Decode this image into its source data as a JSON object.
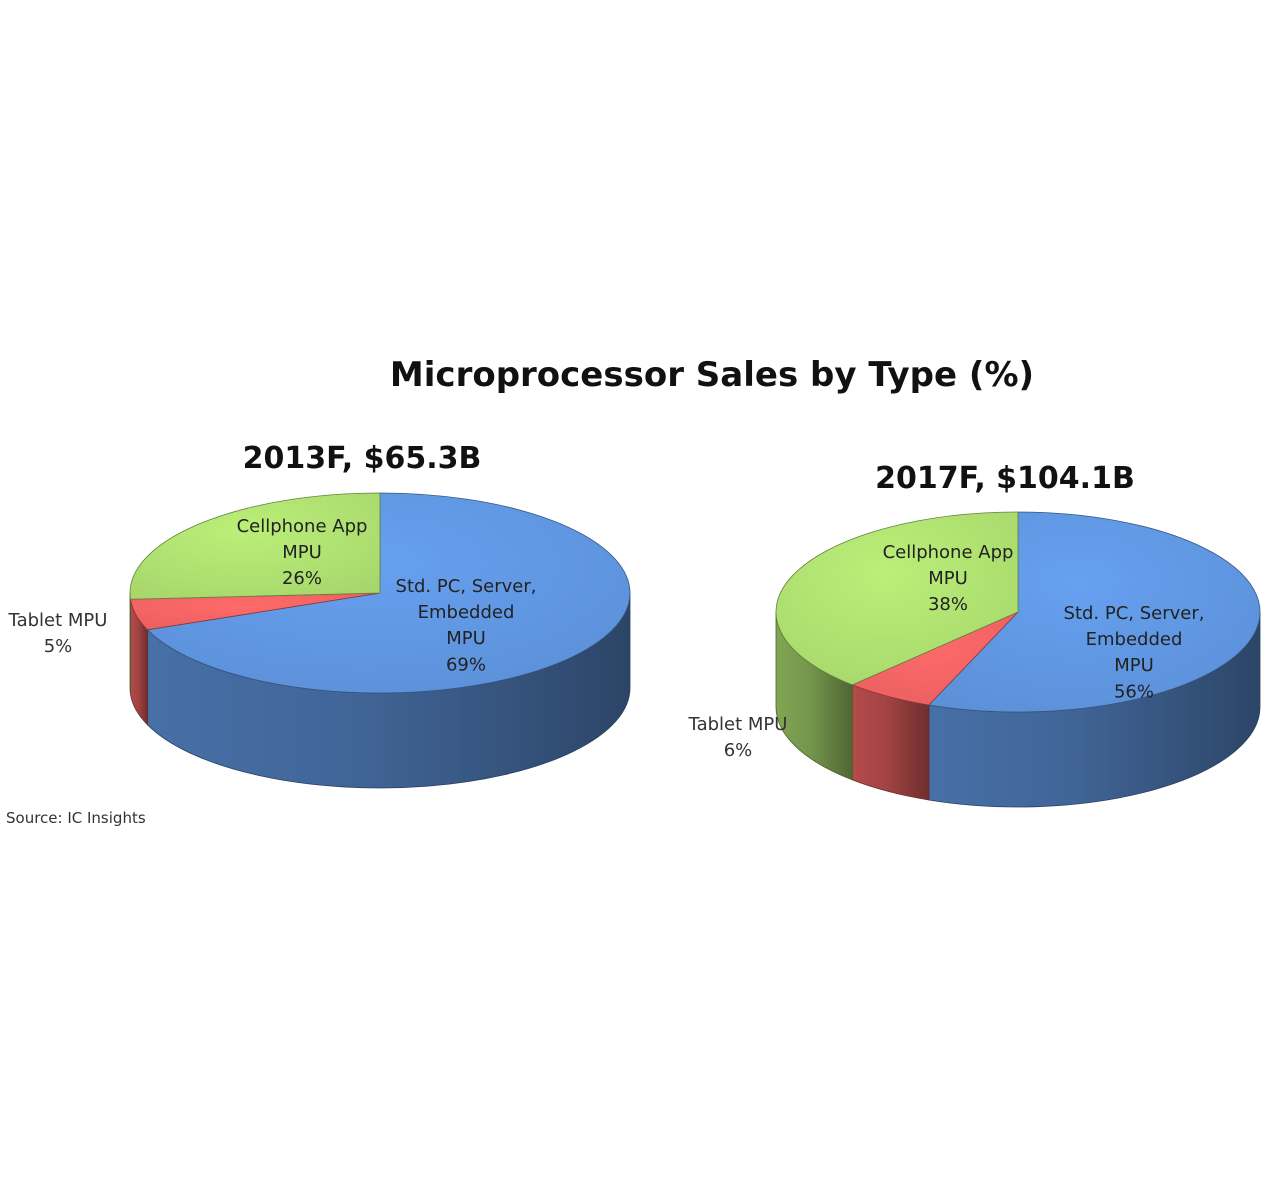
{
  "figure_title": "Microprocessor Sales by Type (%)",
  "source": "Source:  IC Insights",
  "chart_data": [
    {
      "type": "pie",
      "title": "2013F, $65.3B",
      "slices": [
        {
          "label_lines": [
            "Std. PC, Server,",
            "Embedded",
            "MPU"
          ],
          "value": 69,
          "value_label": "69%",
          "color": "#5b8fd6"
        },
        {
          "label_lines": [
            "Tablet MPU"
          ],
          "value": 5,
          "value_label": "5%",
          "color": "#e85f5f"
        },
        {
          "label_lines": [
            "Cellphone App",
            "MPU"
          ],
          "value": 26,
          "value_label": "26%",
          "color": "#a6d56b"
        }
      ]
    },
    {
      "type": "pie",
      "title": "2017F, $104.1B",
      "slices": [
        {
          "label_lines": [
            "Std. PC, Server,",
            "Embedded",
            "MPU"
          ],
          "value": 56,
          "value_label": "56%",
          "color": "#5b8fd6"
        },
        {
          "label_lines": [
            "Tablet MPU"
          ],
          "value": 6,
          "value_label": "6%",
          "color": "#e85f5f"
        },
        {
          "label_lines": [
            "Cellphone App",
            "MPU"
          ],
          "value": 38,
          "value_label": "38%",
          "color": "#a6d56b"
        }
      ]
    }
  ]
}
